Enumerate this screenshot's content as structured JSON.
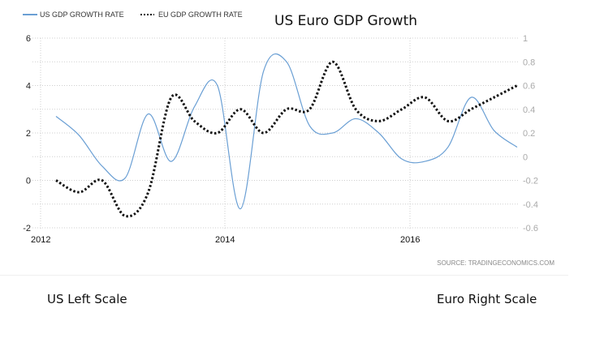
{
  "chart_data": {
    "type": "line",
    "title": "US Euro GDP Growth",
    "xlabel": "",
    "ylabel_left": "",
    "ylabel_right": "",
    "x_ticks": [
      "2012",
      "2014",
      "2016"
    ],
    "x_range": [
      "2012 Q1",
      "2017 Q1"
    ],
    "x": [
      "2012Q2",
      "2012Q3",
      "2012Q4",
      "2013Q1",
      "2013Q2",
      "2013Q3",
      "2013Q4",
      "2014Q1",
      "2014Q2",
      "2014Q3",
      "2014Q4",
      "2015Q1",
      "2015Q2",
      "2015Q3",
      "2015Q4",
      "2016Q1",
      "2016Q2",
      "2016Q3",
      "2016Q4",
      "2017Q1",
      "2017Q2"
    ],
    "left_axis": {
      "ylim": [
        -2,
        6
      ],
      "ticks": [
        "6",
        "4",
        "2",
        "0",
        "-2"
      ]
    },
    "right_axis": {
      "ylim": [
        -0.6,
        1
      ],
      "ticks": [
        "1",
        "0.8",
        "0.6",
        "0.4",
        "0.2",
        "0",
        "-0.2",
        "-0.4",
        "-0.6"
      ]
    },
    "grid": true,
    "legend_position": "top-left",
    "series": [
      {
        "name": "US GDP GROWTH RATE",
        "axis": "left",
        "style": "solid",
        "color": "#6a9fd4",
        "values": [
          2.7,
          1.9,
          0.6,
          0.1,
          2.8,
          0.8,
          3.1,
          4.0,
          -1.2,
          4.6,
          5.0,
          2.3,
          2.0,
          2.6,
          2.0,
          0.9,
          0.8,
          1.4,
          3.5,
          2.1,
          1.4
        ]
      },
      {
        "name": "EU GDP GROWTH RATE",
        "axis": "right",
        "style": "dotted",
        "color": "#111111",
        "values": [
          -0.2,
          -0.3,
          -0.2,
          -0.5,
          -0.3,
          0.5,
          0.3,
          0.2,
          0.4,
          0.2,
          0.4,
          0.4,
          0.8,
          0.4,
          0.3,
          0.4,
          0.5,
          0.3,
          0.4,
          0.5,
          0.6
        ]
      }
    ],
    "source": "SOURCE: TRADINGECONOMICS.COM"
  },
  "annotations": {
    "left_note": "US Left Scale",
    "right_note": "Euro Right Scale"
  }
}
